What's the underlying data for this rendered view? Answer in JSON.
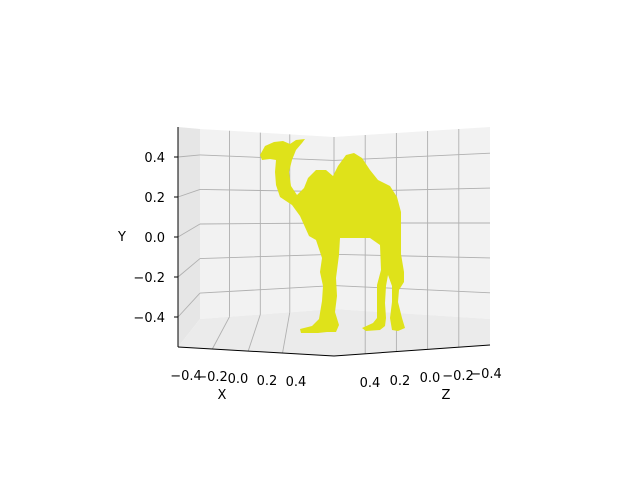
{
  "chart_data": {
    "type": "3d-surface",
    "title": "",
    "xlabel": "X",
    "ylabel": "Y",
    "zlabel": "Z",
    "x_ticks": [
      "−0.4",
      "−0.2",
      "0.0",
      "0.2",
      "0.4"
    ],
    "y_ticks": [
      "0.4",
      "0.2",
      "0.0",
      "−0.2",
      "−0.4"
    ],
    "z_ticks": [
      "0.4",
      "0.2",
      "0.0",
      "−0.2",
      "−0.4"
    ],
    "xlim": [
      -0.5,
      0.5
    ],
    "ylim": [
      -0.55,
      0.55
    ],
    "zlim": [
      -0.5,
      0.5
    ],
    "grid": true,
    "view": "front, slight elevation",
    "series": [
      {
        "shape": "camel",
        "color": "#dfe21a"
      }
    ]
  }
}
